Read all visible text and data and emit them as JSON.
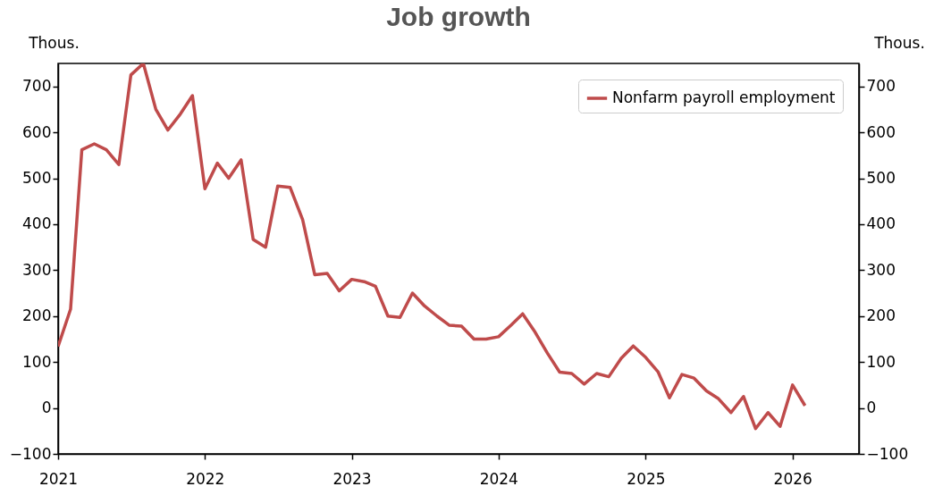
{
  "chart_data": {
    "type": "line",
    "title": "Job growth",
    "ylabel": "Thous.",
    "y2label": "Thous.",
    "x": [
      "2021-01",
      "2021-02",
      "2021-03",
      "2021-04",
      "2021-05",
      "2021-06",
      "2021-07",
      "2021-08",
      "2021-09",
      "2021-10",
      "2021-11",
      "2021-12",
      "2022-01",
      "2022-02",
      "2022-03",
      "2022-04",
      "2022-05",
      "2022-06",
      "2022-07",
      "2022-08",
      "2022-09",
      "2022-10",
      "2022-11",
      "2022-12",
      "2023-01",
      "2023-02",
      "2023-03",
      "2023-04",
      "2023-05",
      "2023-06",
      "2023-07",
      "2023-08",
      "2023-09",
      "2023-10",
      "2023-11",
      "2023-12",
      "2024-01",
      "2024-02",
      "2024-03",
      "2024-04",
      "2024-05",
      "2024-06",
      "2024-07",
      "2024-08",
      "2024-09",
      "2024-10",
      "2024-11",
      "2024-12",
      "2025-01",
      "2025-02",
      "2025-03",
      "2025-04",
      "2025-05",
      "2025-06",
      "2025-07",
      "2025-08",
      "2025-09",
      "2025-10",
      "2025-11",
      "2025-12",
      "2026-01",
      "2026-02"
    ],
    "series": [
      {
        "name": "Nonfarm payroll employment",
        "color": "#bf4b4b",
        "values": [
          134,
          215,
          562,
          575,
          562,
          530,
          725,
          750,
          650,
          605,
          640,
          680,
          477,
          533,
          500,
          540,
          367,
          350,
          483,
          480,
          410,
          290,
          293,
          255,
          280,
          275,
          265,
          200,
          197,
          250,
          222,
          200,
          180,
          178,
          150,
          150,
          155,
          180,
          205,
          165,
          120,
          78,
          75,
          52,
          75,
          68,
          108,
          135,
          110,
          78,
          22,
          73,
          65,
          37,
          20,
          -10,
          25,
          -45,
          -10,
          -40,
          50,
          5
        ]
      }
    ],
    "xlim": [
      "2021-01",
      "2026-06-15"
    ],
    "xticks": [
      "2021",
      "2022",
      "2023",
      "2024",
      "2025",
      "2026"
    ],
    "ylim": [
      -100,
      750
    ],
    "yticks": [
      -100,
      0,
      100,
      200,
      300,
      400,
      500,
      600,
      700
    ],
    "y2lim": [
      -100,
      750
    ],
    "y2ticks": [
      -100,
      0,
      100,
      200,
      300,
      400,
      500,
      600,
      700
    ],
    "grid": false,
    "legend": "top right",
    "marker": "none",
    "line_style": "solid"
  }
}
